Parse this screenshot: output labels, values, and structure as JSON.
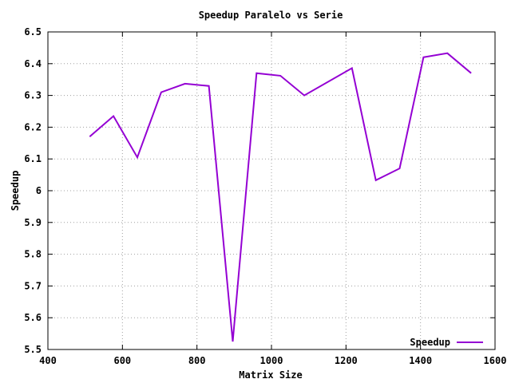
{
  "chart_data": {
    "type": "line",
    "title": "Speedup Paralelo vs Serie",
    "xlabel": "Matrix Size",
    "ylabel": "Speedup",
    "xlim": [
      400,
      1600
    ],
    "ylim": [
      5.5,
      6.5
    ],
    "xticks": [
      400,
      600,
      800,
      1000,
      1200,
      1400,
      1600
    ],
    "yticks": [
      5.5,
      5.6,
      5.7,
      5.8,
      5.9,
      6.0,
      6.1,
      6.2,
      6.3,
      6.4,
      6.5
    ],
    "ytick_labels": [
      "5.5",
      "5.6",
      "5.7",
      "5.8",
      "5.9",
      "6",
      "6.1",
      "6.2",
      "6.3",
      "6.4",
      "6.5"
    ],
    "grid": true,
    "legend_position": "bottom-right",
    "series": [
      {
        "name": "Speedup",
        "color": "#9400d3",
        "x": [
          512,
          576,
          640,
          704,
          768,
          832,
          896,
          960,
          1024,
          1088,
          1216,
          1280,
          1344,
          1408,
          1472,
          1536
        ],
        "y": [
          6.17,
          6.235,
          6.105,
          6.31,
          6.337,
          6.33,
          5.525,
          6.37,
          6.362,
          6.3,
          6.386,
          6.033,
          6.07,
          6.42,
          6.433,
          6.37
        ]
      }
    ]
  }
}
